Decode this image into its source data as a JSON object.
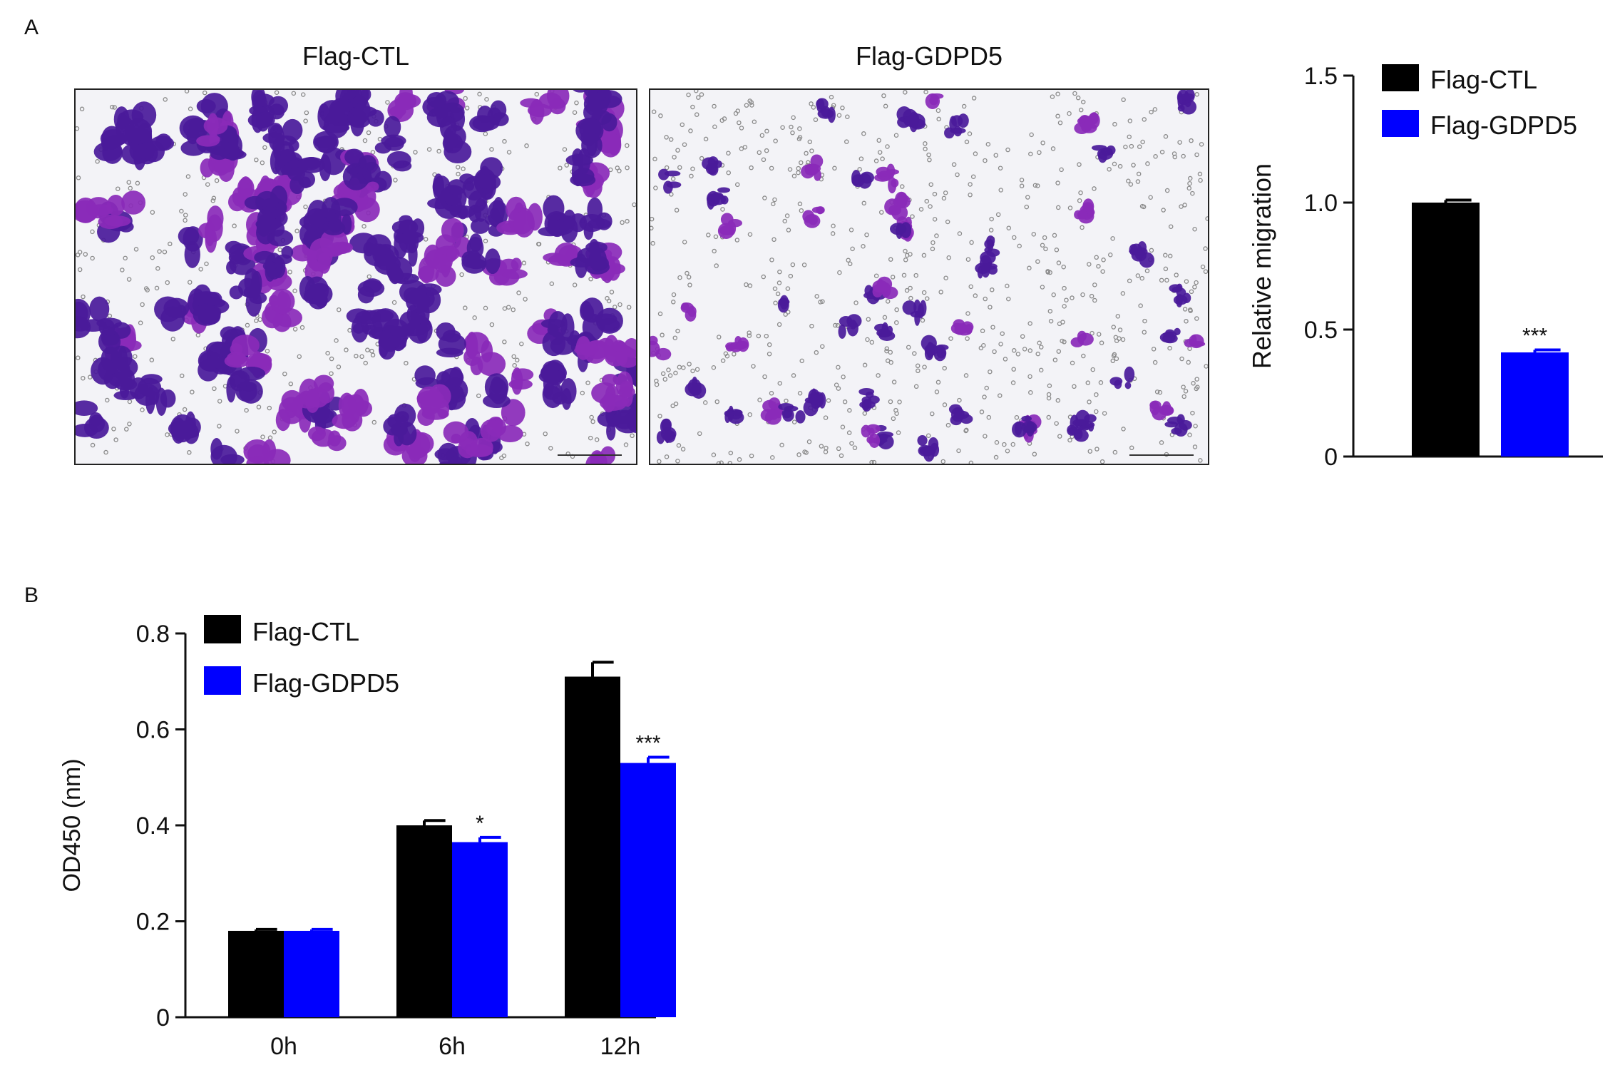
{
  "panels": {
    "a_label": "A",
    "b_label": "B"
  },
  "micrographs": [
    {
      "title": "Flag-CTL"
    },
    {
      "title": "Flag-GDPD5"
    }
  ],
  "colors": {
    "ctl": "#000000",
    "gdpd5": "#0000ff",
    "stain_dense": "#4a1a9a",
    "stain_light": "#8a2ab8"
  },
  "chart_data": [
    {
      "type": "bar",
      "panel": "A",
      "title": "",
      "ylabel": "Relative migration",
      "xlabel": "",
      "ylim": [
        0,
        1.5
      ],
      "yticks": [
        0,
        0.5,
        1.0,
        1.5
      ],
      "ytick_labels": [
        "0",
        "0.5",
        "1.0",
        "1.5"
      ],
      "legend_position": "top-right",
      "categories": [
        ""
      ],
      "series": [
        {
          "name": "Flag-CTL",
          "values": [
            1.0
          ],
          "errors": [
            0.01
          ],
          "color": "#000000",
          "annotations": [
            ""
          ]
        },
        {
          "name": "Flag-GDPD5",
          "values": [
            0.41
          ],
          "errors": [
            0.01
          ],
          "color": "#0000ff",
          "annotations": [
            "***"
          ]
        }
      ]
    },
    {
      "type": "bar",
      "panel": "B",
      "title": "",
      "ylabel": "OD450 (nm)",
      "xlabel": "",
      "ylim": [
        0,
        0.8
      ],
      "yticks": [
        0,
        0.2,
        0.4,
        0.6,
        0.8
      ],
      "ytick_labels": [
        "0",
        "0.2",
        "0.4",
        "0.6",
        "0.8"
      ],
      "legend_position": "top-left",
      "categories": [
        "0h",
        "6h",
        "12h"
      ],
      "series": [
        {
          "name": "Flag-CTL",
          "values": [
            0.18,
            0.4,
            0.71
          ],
          "errors": [
            0.003,
            0.01,
            0.03
          ],
          "color": "#000000",
          "annotations": [
            "",
            "",
            ""
          ]
        },
        {
          "name": "Flag-GDPD5",
          "values": [
            0.18,
            0.365,
            0.53
          ],
          "errors": [
            0.003,
            0.01,
            0.012
          ],
          "color": "#0000ff",
          "annotations": [
            "",
            "*",
            "***"
          ]
        }
      ]
    }
  ]
}
